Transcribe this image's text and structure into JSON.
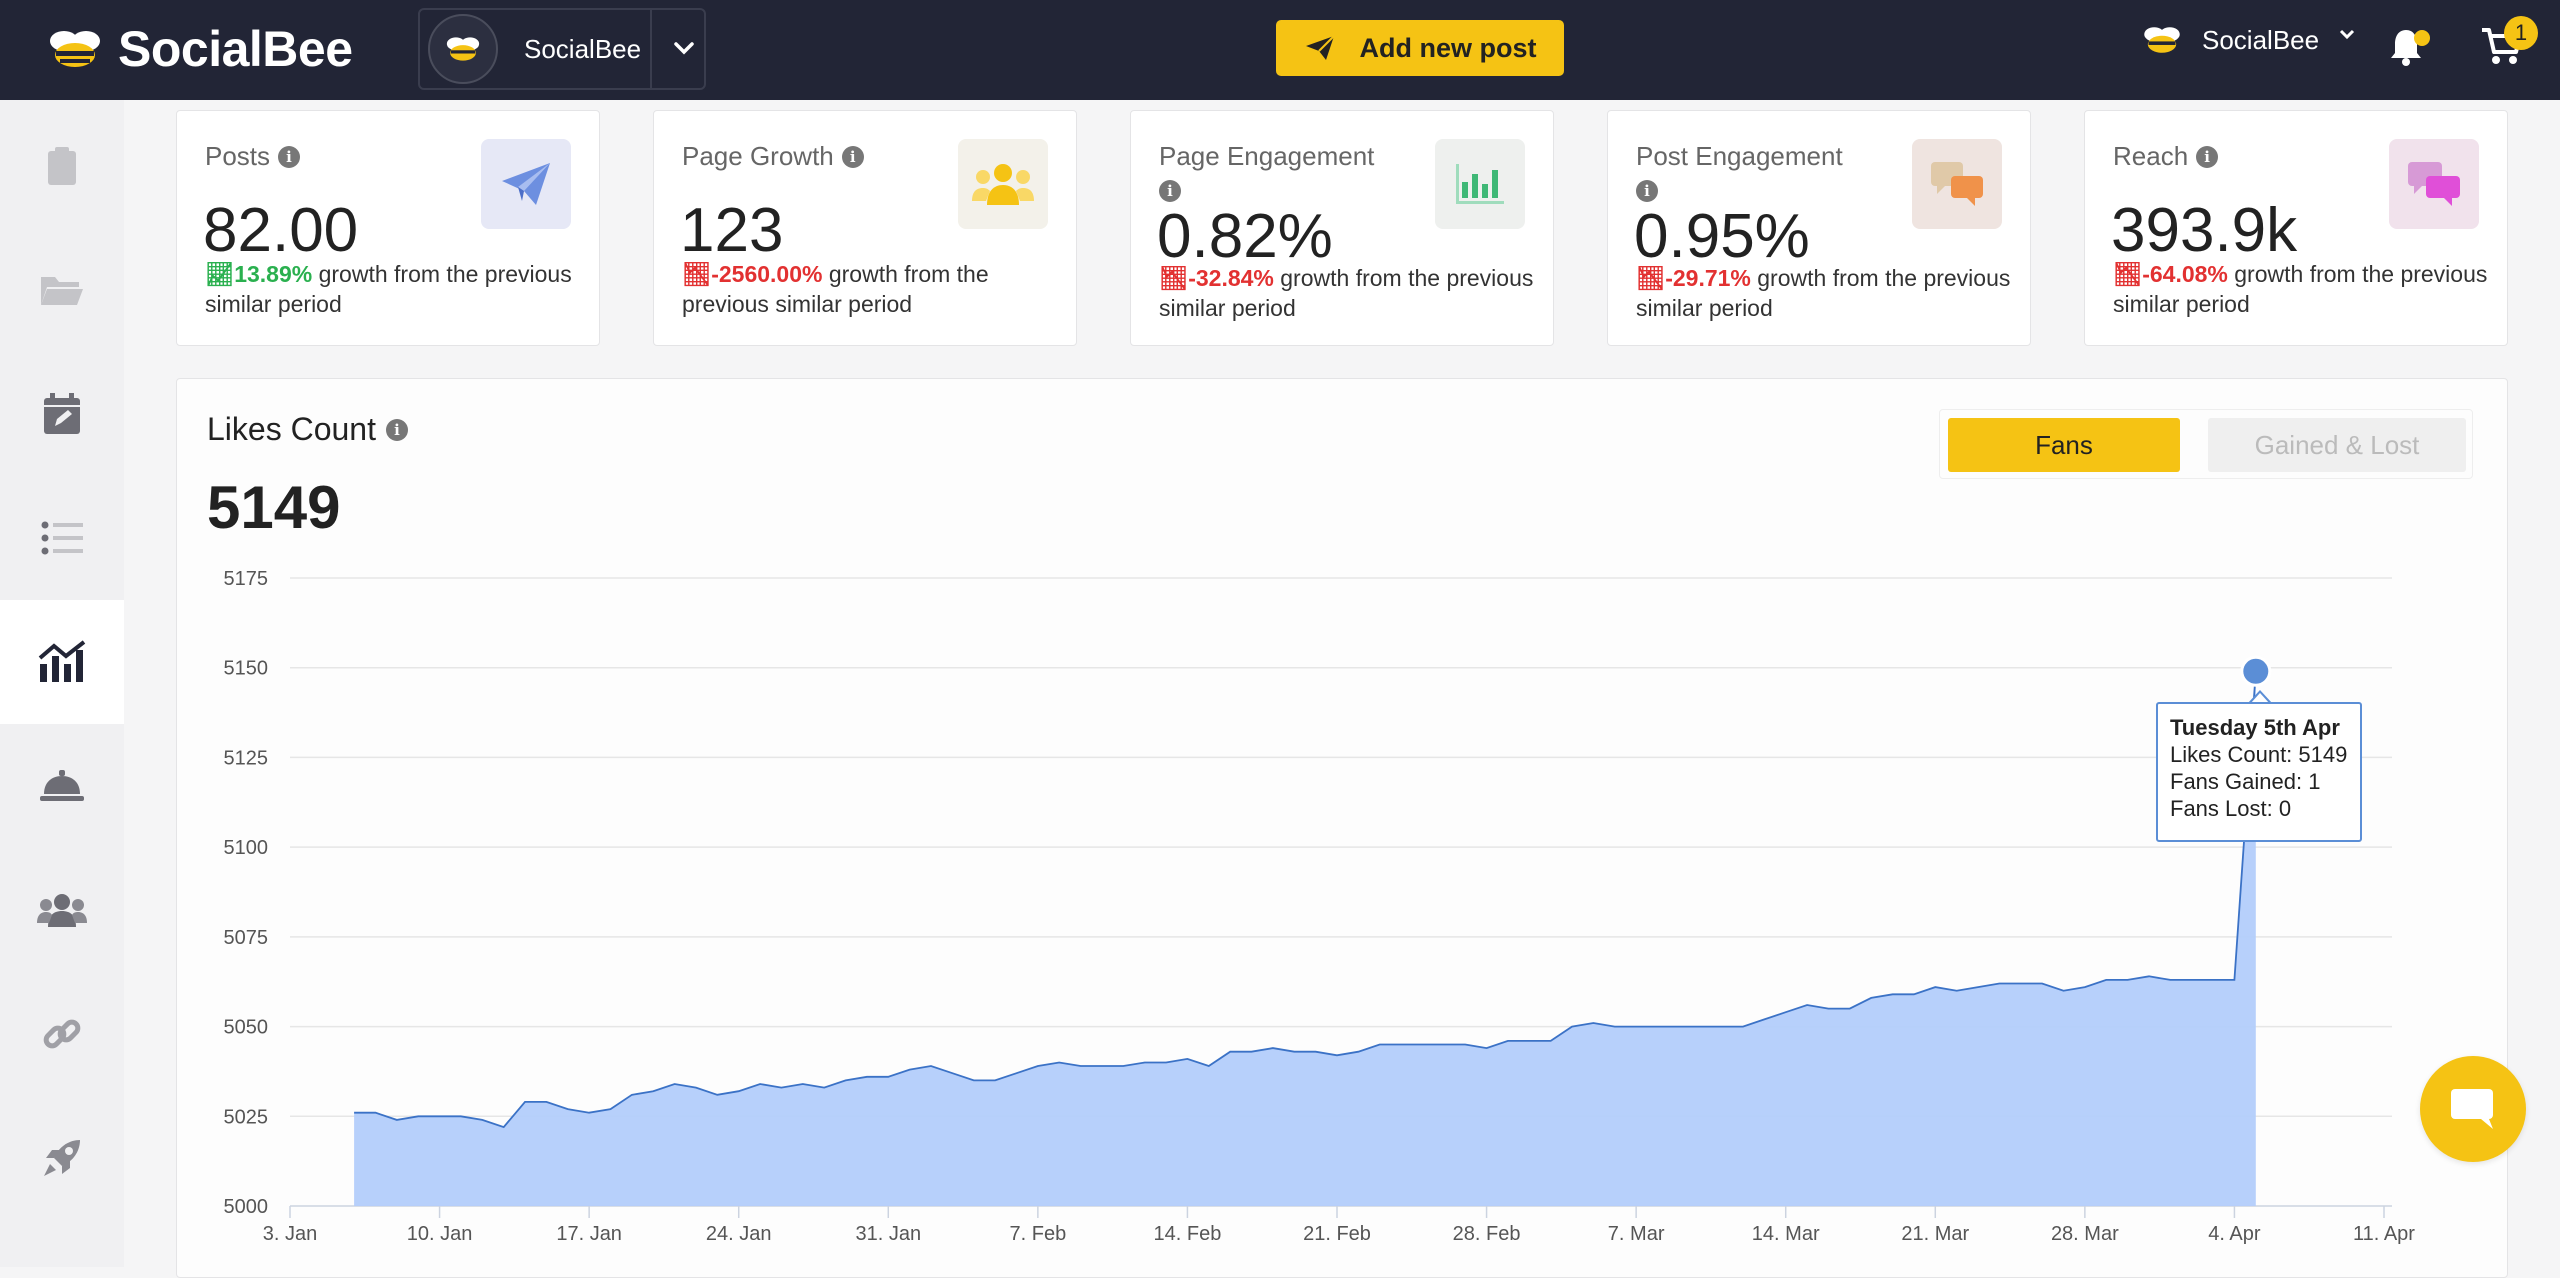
{
  "app": {
    "brand": "SocialBee",
    "account_switcher": {
      "name": "SocialBee"
    },
    "add_post_label": "Add new post",
    "user_menu_name": "SocialBee",
    "cart_count": "1",
    "colors": {
      "accent": "#f5c314",
      "topbar": "#222536",
      "chart_fill": "#b3cdfb",
      "chart_line": "#3b72c6",
      "up": "#2ab04f",
      "down": "#e23131"
    }
  },
  "sidebar": {
    "items": [
      {
        "icon": "clipboard-icon"
      },
      {
        "icon": "folder-icon"
      },
      {
        "icon": "calendar-edit-icon"
      },
      {
        "icon": "list-icon"
      },
      {
        "icon": "analytics-icon",
        "active": true
      },
      {
        "icon": "bell-service-icon"
      },
      {
        "icon": "users-icon"
      },
      {
        "icon": "link-icon"
      },
      {
        "icon": "rocket-icon"
      }
    ]
  },
  "stats": [
    {
      "title": "Posts",
      "value": "82.00",
      "growth_pct": "13.89%",
      "direction": "up",
      "growth_text": "growth from the previous similar period",
      "icon": "paper-plane-icon"
    },
    {
      "title": "Page Growth",
      "value": "123",
      "growth_pct": "-2560.00%",
      "direction": "down",
      "growth_text": "growth from the previous similar period",
      "icon": "people-icon"
    },
    {
      "title": "Page Engagement",
      "value": "0.82%",
      "growth_pct": "-32.84%",
      "direction": "down",
      "growth_text": "growth from the previous similar period",
      "icon": "bar-chart-icon"
    },
    {
      "title": "Post Engagement",
      "value": "0.95%",
      "growth_pct": "-29.71%",
      "direction": "down",
      "growth_text": "growth from the previous similar period",
      "icon": "chat-bubbles-icon"
    },
    {
      "title": "Reach",
      "value": "393.9k",
      "growth_pct": "-64.08%",
      "direction": "down",
      "growth_text": "growth from the previous similar period",
      "icon": "message-bubbles-icon"
    }
  ],
  "likes_panel": {
    "title": "Likes Count",
    "value": "5149",
    "toggle_fans": "Fans",
    "toggle_gained_lost": "Gained & Lost"
  },
  "tooltip": {
    "date": "Tuesday 5th Apr",
    "likes": "Likes Count: 5149",
    "gained": "Fans Gained: 1",
    "lost": "Fans Lost: 0"
  },
  "chart_data": {
    "type": "area",
    "ylim": [
      5000,
      5175
    ],
    "yticks": [
      5000,
      5025,
      5050,
      5075,
      5100,
      5125,
      5150,
      5175
    ],
    "x_start": "2022-01-03",
    "x_end": "2022-04-11",
    "xticks": [
      "3. Jan",
      "10. Jan",
      "17. Jan",
      "24. Jan",
      "31. Jan",
      "7. Feb",
      "14. Feb",
      "21. Feb",
      "28. Feb",
      "7. Mar",
      "14. Mar",
      "21. Mar",
      "28. Mar",
      "4. Apr",
      "11. Apr"
    ],
    "grid": true,
    "series": [
      {
        "x": [
          "2022-01-06",
          "2022-01-07",
          "2022-01-08",
          "2022-01-09",
          "2022-01-10",
          "2022-01-11",
          "2022-01-12",
          "2022-01-13",
          "2022-01-14",
          "2022-01-15",
          "2022-01-16",
          "2022-01-17",
          "2022-01-18",
          "2022-01-19",
          "2022-01-20",
          "2022-01-21",
          "2022-01-22",
          "2022-01-23",
          "2022-01-24",
          "2022-01-25",
          "2022-01-26",
          "2022-01-27",
          "2022-01-28",
          "2022-01-29",
          "2022-01-30",
          "2022-01-31",
          "2022-02-01",
          "2022-02-02",
          "2022-02-03",
          "2022-02-04",
          "2022-02-05",
          "2022-02-06",
          "2022-02-07",
          "2022-02-08",
          "2022-02-09",
          "2022-02-10",
          "2022-02-11",
          "2022-02-12",
          "2022-02-13",
          "2022-02-14",
          "2022-02-15",
          "2022-02-16",
          "2022-02-17",
          "2022-02-18",
          "2022-02-19",
          "2022-02-20",
          "2022-02-21",
          "2022-02-22",
          "2022-02-23",
          "2022-02-24",
          "2022-02-25",
          "2022-02-26",
          "2022-02-27",
          "2022-02-28",
          "2022-03-01",
          "2022-03-02",
          "2022-03-03",
          "2022-03-04",
          "2022-03-05",
          "2022-03-06",
          "2022-03-07",
          "2022-03-08",
          "2022-03-09",
          "2022-03-10",
          "2022-03-11",
          "2022-03-12",
          "2022-03-13",
          "2022-03-14",
          "2022-03-15",
          "2022-03-16",
          "2022-03-17",
          "2022-03-18",
          "2022-03-19",
          "2022-03-20",
          "2022-03-21",
          "2022-03-22",
          "2022-03-23",
          "2022-03-24",
          "2022-03-25",
          "2022-03-26",
          "2022-03-27",
          "2022-03-28",
          "2022-03-29",
          "2022-03-30",
          "2022-03-31",
          "2022-04-01",
          "2022-04-02",
          "2022-04-03",
          "2022-04-04",
          "2022-04-05"
        ],
        "y": [
          5026,
          5026,
          5024,
          5025,
          5025,
          5025,
          5024,
          5022,
          5029,
          5029,
          5027,
          5026,
          5027,
          5031,
          5032,
          5034,
          5033,
          5031,
          5032,
          5034,
          5033,
          5034,
          5033,
          5035,
          5036,
          5036,
          5038,
          5039,
          5037,
          5035,
          5035,
          5037,
          5039,
          5040,
          5039,
          5039,
          5039,
          5040,
          5040,
          5041,
          5039,
          5043,
          5043,
          5044,
          5043,
          5043,
          5042,
          5043,
          5045,
          5045,
          5045,
          5045,
          5045,
          5044,
          5046,
          5046,
          5046,
          5050,
          5051,
          5050,
          5050,
          5050,
          5050,
          5050,
          5050,
          5050,
          5052,
          5054,
          5056,
          5055,
          5055,
          5058,
          5059,
          5059,
          5061,
          5060,
          5061,
          5062,
          5062,
          5062,
          5060,
          5061,
          5063,
          5063,
          5064,
          5063,
          5063,
          5063,
          5063,
          5149
        ]
      }
    ],
    "highlight": {
      "x": "2022-04-05",
      "y": 5149
    }
  }
}
